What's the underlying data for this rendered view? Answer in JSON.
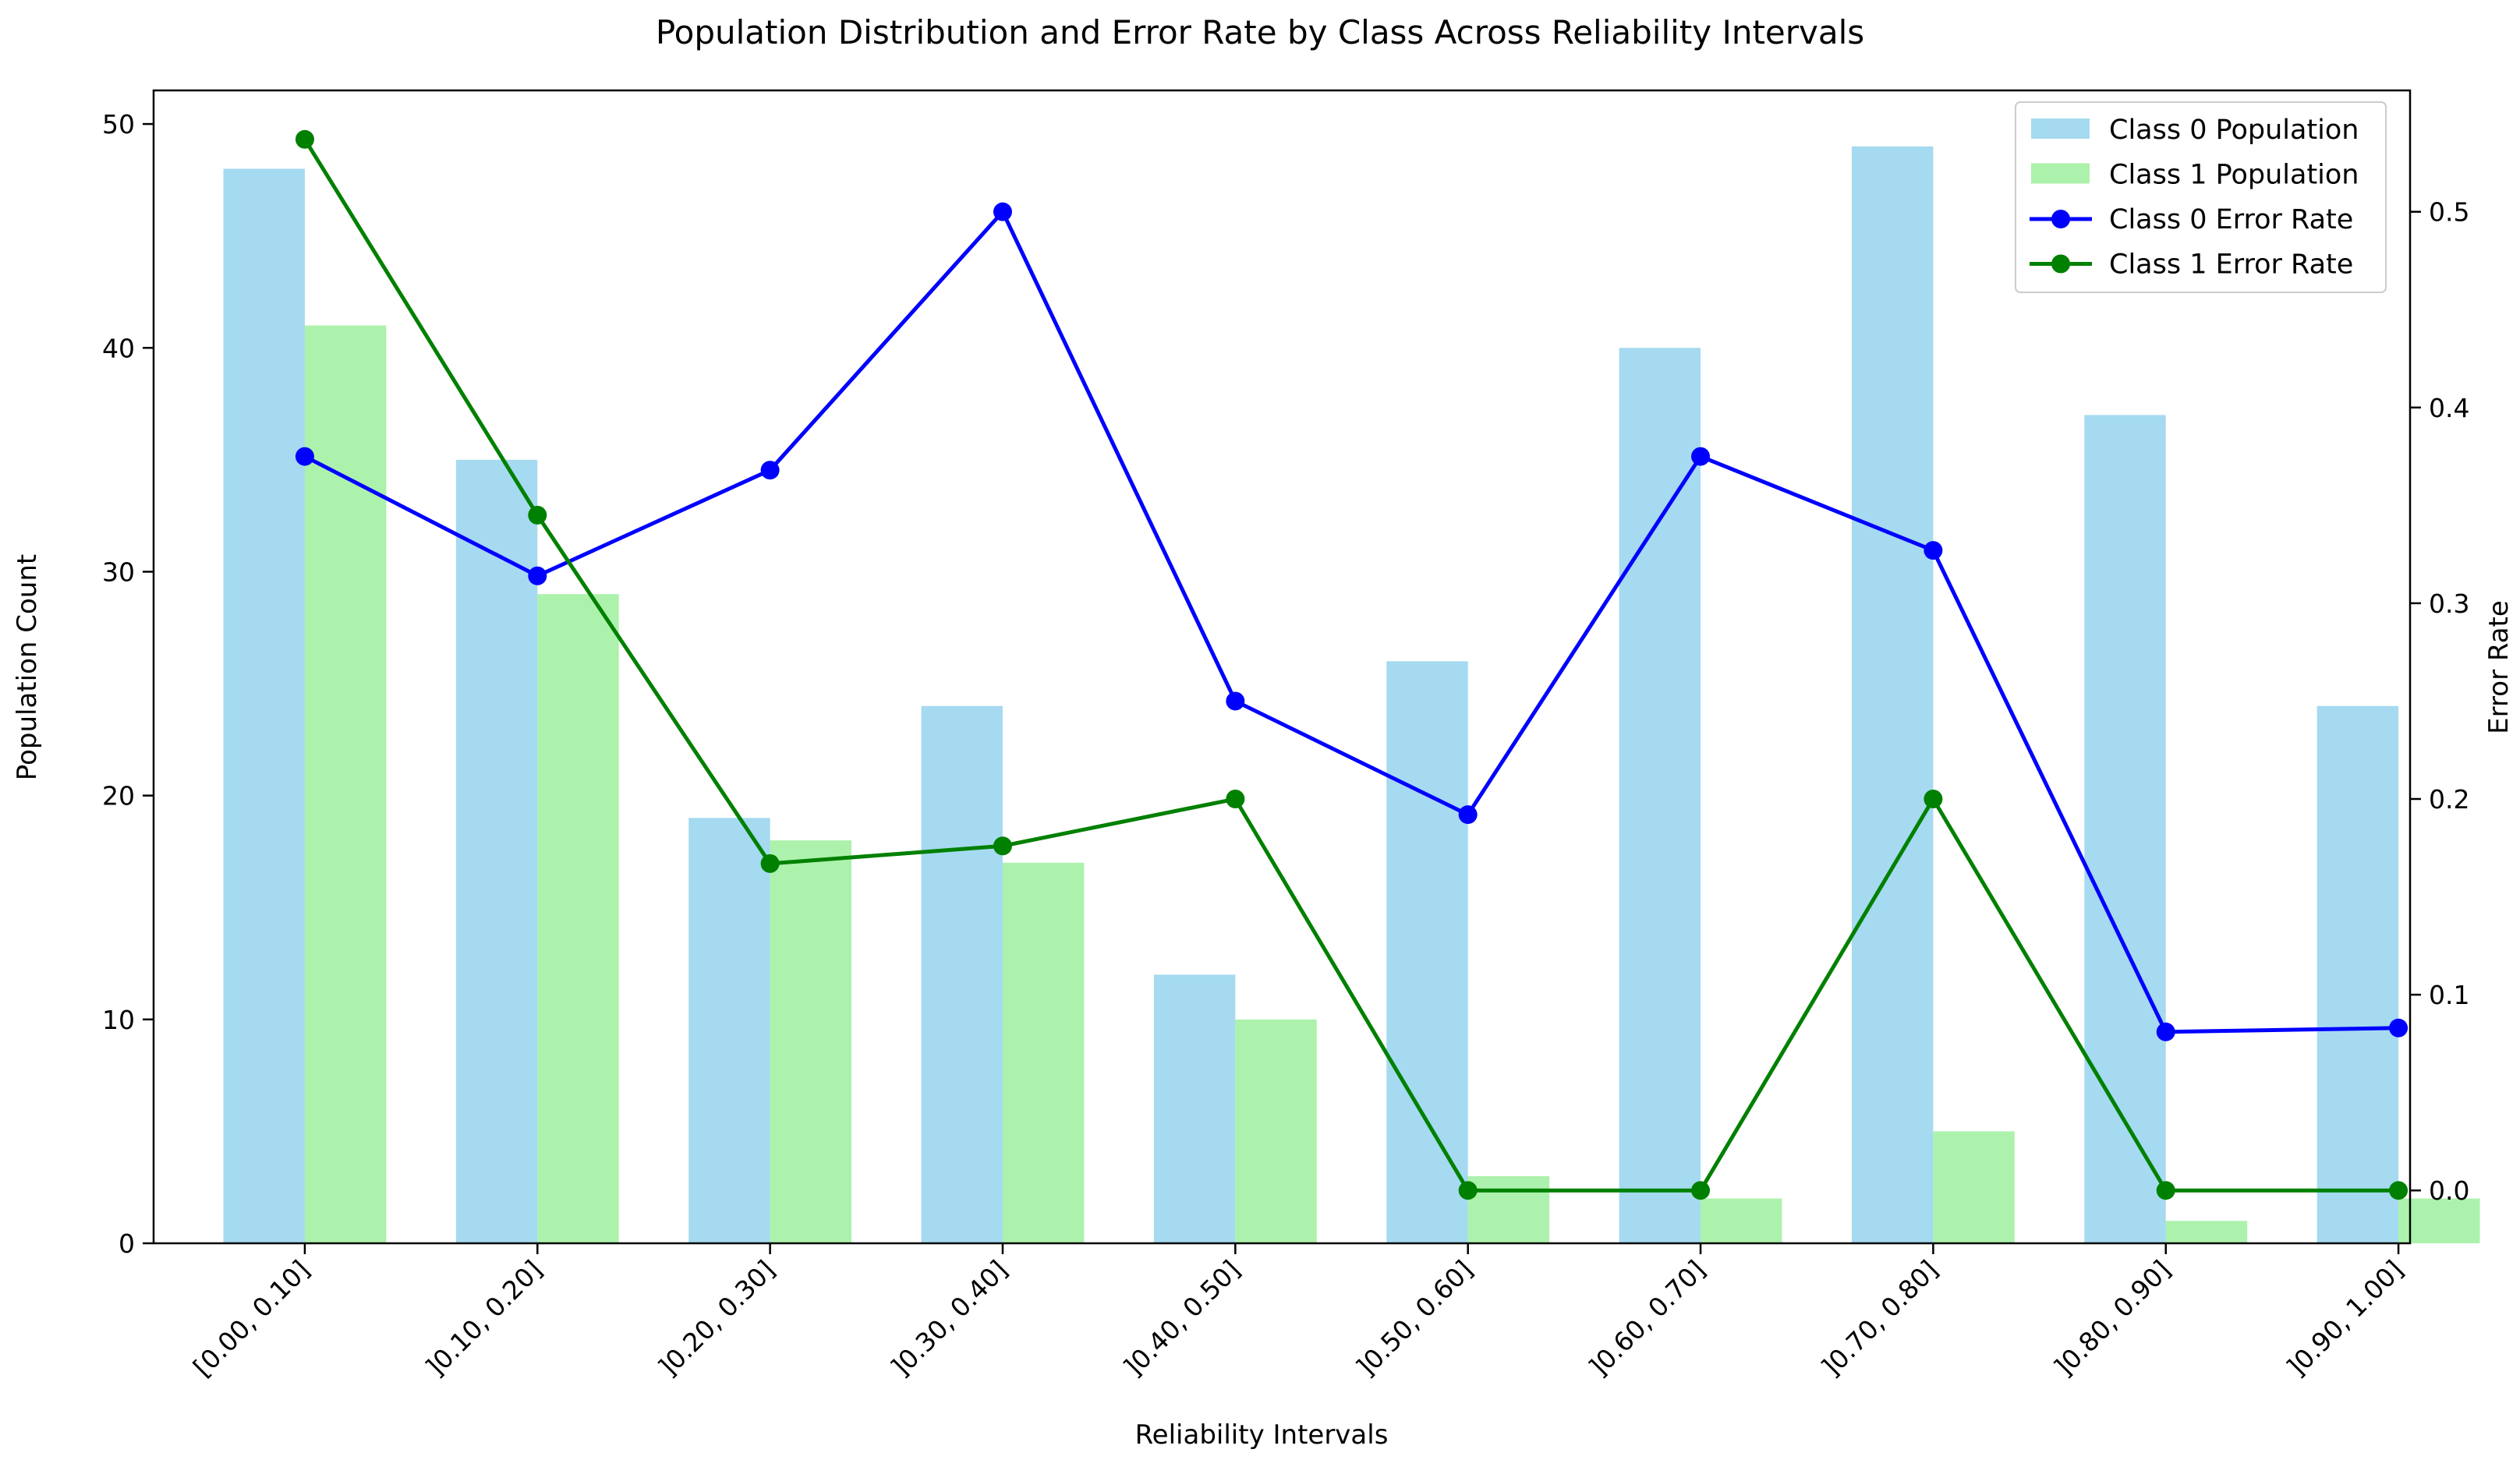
{
  "chart_data": {
    "type": "bar",
    "title": "Population Distribution and Error Rate by Class Across Reliability Intervals",
    "xlabel": "Reliability Intervals",
    "ylabel": "Population Count",
    "y2label": "Error Rate",
    "categories": [
      "[0.00, 0.10]",
      "]0.10, 0.20]",
      "]0.20, 0.30]",
      "]0.30, 0.40]",
      "]0.40, 0.50]",
      "]0.50, 0.60]",
      "]0.60, 0.70]",
      "]0.70, 0.80]",
      "]0.80, 0.90]",
      "]0.90, 1.00]"
    ],
    "ylim": [
      0,
      51.5
    ],
    "yticks": [
      0,
      10,
      20,
      30,
      40,
      50
    ],
    "y2lim": [
      -0.027,
      0.562
    ],
    "y2ticks": [
      0.0,
      0.1,
      0.2,
      0.3,
      0.4,
      0.5
    ],
    "series": [
      {
        "name": "Class 0 Population",
        "kind": "bar",
        "axis": "left",
        "color": "#87ceeb",
        "values": [
          48,
          35,
          19,
          24,
          12,
          26,
          40,
          49,
          37,
          24
        ]
      },
      {
        "name": "Class 1 Population",
        "kind": "bar",
        "axis": "left",
        "color": "#90ee90",
        "values": [
          41,
          29,
          18,
          17,
          10,
          3,
          2,
          5,
          1,
          2
        ]
      },
      {
        "name": "Class 0 Error Rate",
        "kind": "line",
        "axis": "right",
        "color": "#0000ff",
        "values": [
          0.375,
          0.314,
          0.368,
          0.5,
          0.25,
          0.192,
          0.375,
          0.327,
          0.081,
          0.083
        ]
      },
      {
        "name": "Class 1 Error Rate",
        "kind": "line",
        "axis": "right",
        "color": "#008000",
        "values": [
          0.537,
          0.345,
          0.167,
          0.176,
          0.2,
          0.0,
          0.0,
          0.2,
          0.0,
          0.0
        ]
      }
    ],
    "legend_position": "top-right",
    "grid": false
  }
}
